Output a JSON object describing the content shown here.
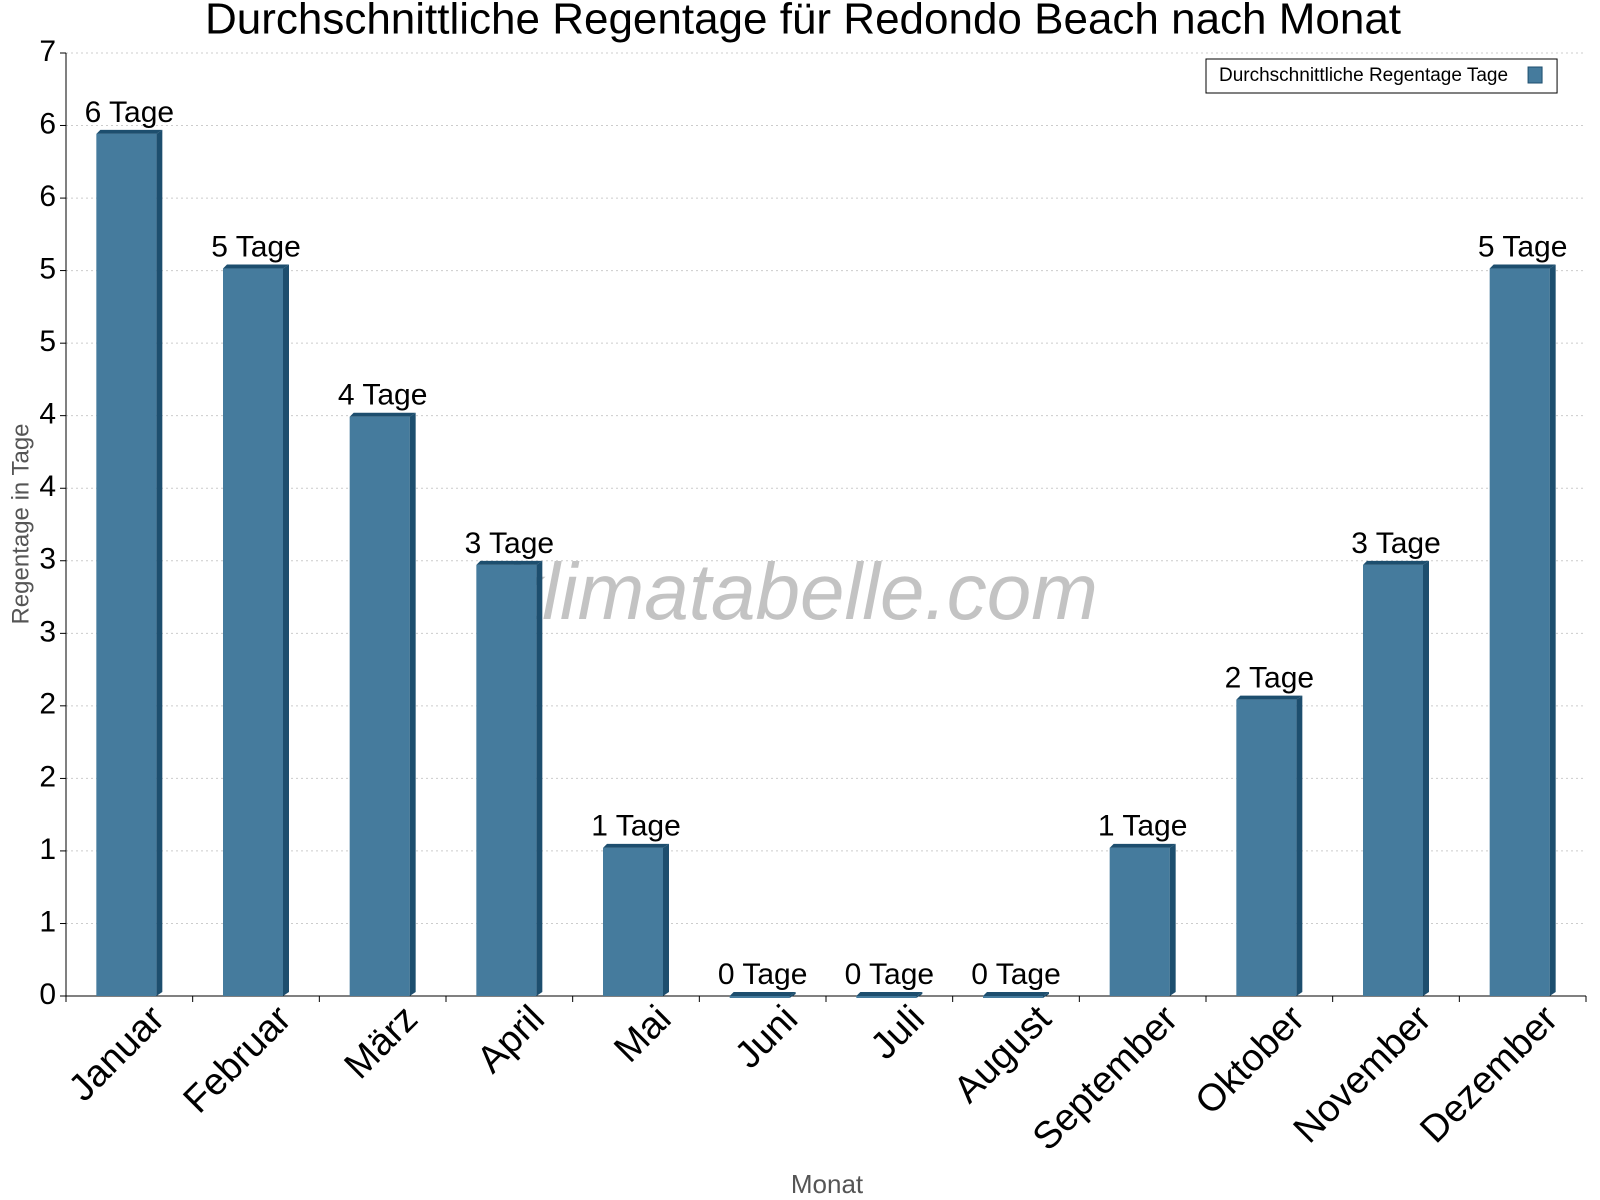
{
  "chart_data": {
    "type": "bar",
    "title": "Durchschnittliche Regentage für Redondo Beach nach Monat",
    "watermark": "klimatabelle.com",
    "x_label": "Monat",
    "y_label": "Regentage in Tage",
    "categories": [
      "Januar",
      "Februar",
      "März",
      "April",
      "Mai",
      "Juni",
      "Juli",
      "August",
      "September",
      "Oktober",
      "November",
      "Dezember"
    ],
    "series": [
      {
        "name": "Durchschnittliche Regentage Tage",
        "color": "#457b9d",
        "values": [
          6.4,
          5.4,
          4.3,
          3.2,
          1.1,
          0,
          0,
          0,
          1.1,
          2.2,
          3.2,
          5.4
        ],
        "value_labels": [
          "6 Tage",
          "5 Tage",
          "4 Tage",
          "3 Tage",
          "1 Tage",
          "0 Tage",
          "0 Tage",
          "0 Tage",
          "1 Tage",
          "2 Tage",
          "3 Tage",
          "5 Tage"
        ]
      }
    ],
    "ylim": [
      0,
      7
    ],
    "yticks": [
      0,
      {
        "value": 0.538,
        "label": "1"
      },
      {
        "value": 1.077,
        "label": "1"
      },
      {
        "value": 1.615,
        "label": "2"
      },
      {
        "value": 2.154,
        "label": "2"
      },
      {
        "value": 2.692,
        "label": "3"
      },
      {
        "value": 3.231,
        "label": "3"
      },
      {
        "value": 3.769,
        "label": "4"
      },
      {
        "value": 4.308,
        "label": "4"
      },
      {
        "value": 4.846,
        "label": "5"
      },
      {
        "value": 5.385,
        "label": "5"
      },
      {
        "value": 5.923,
        "label": "6"
      },
      {
        "value": 6.462,
        "label": "6"
      },
      7
    ],
    "grid": true,
    "legend": "top-right"
  }
}
